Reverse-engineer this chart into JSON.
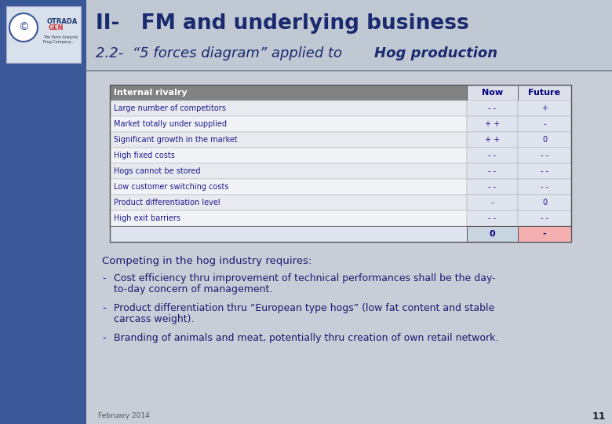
{
  "title_line1": "II-   FM and underlying business",
  "title_line2_normal": "2.2-  “5 forces diagram” applied to ",
  "title_line2_bold": "Hog production",
  "table_header": "Internal rivalry",
  "col_now": "Now",
  "col_future": "Future",
  "rows": [
    {
      "label": "Large number of competitors",
      "now": "- -",
      "future": "+"
    },
    {
      "label": "Market totally under supplied",
      "now": "+ +",
      "future": "-"
    },
    {
      "label": "Significant growth in the market",
      "now": "+ +",
      "future": "0"
    },
    {
      "label": "High fixed costs",
      "now": "- -",
      "future": "- -"
    },
    {
      "label": "Hogs cannot be stored",
      "now": "- -",
      "future": "- -"
    },
    {
      "label": "Low customer switching costs",
      "now": "- -",
      "future": "- -"
    },
    {
      "label": "Product differentiation level",
      "now": "-",
      "future": "0"
    },
    {
      "label": "High exit barriers",
      "now": "- -",
      "future": "- -"
    }
  ],
  "total_now": "0",
  "total_future": "-",
  "competing_text": "Competing in the hog industry requires:",
  "bullets": [
    [
      "Cost efficiency thru improvement of technical performances shall be the day-",
      "to-day concern of management."
    ],
    [
      "Product differentiation thru “European type hogs” (low fat content and stable",
      "carcass weight)."
    ],
    [
      "Branding of animals and meat, potentially thru creation of own retail network."
    ]
  ],
  "footer_date": "February 2014",
  "footer_num": "11",
  "sidebar_color": "#3a5898",
  "header_bg_color": "#c8cdd8",
  "main_bg_color": "#c8cdd8",
  "title_color": "#1a2a6e",
  "table_fg_color": "#1a1a8c",
  "table_header_bg": "#828282",
  "col_header_bg": "#dde0e8",
  "row_bg_a": "#e8eaf0",
  "row_bg_b": "#f2f3f7",
  "total_now_bg": "#c8d4e0",
  "total_future_bg": "#f4b0b0",
  "bullet_fg": "#1a1a8c"
}
